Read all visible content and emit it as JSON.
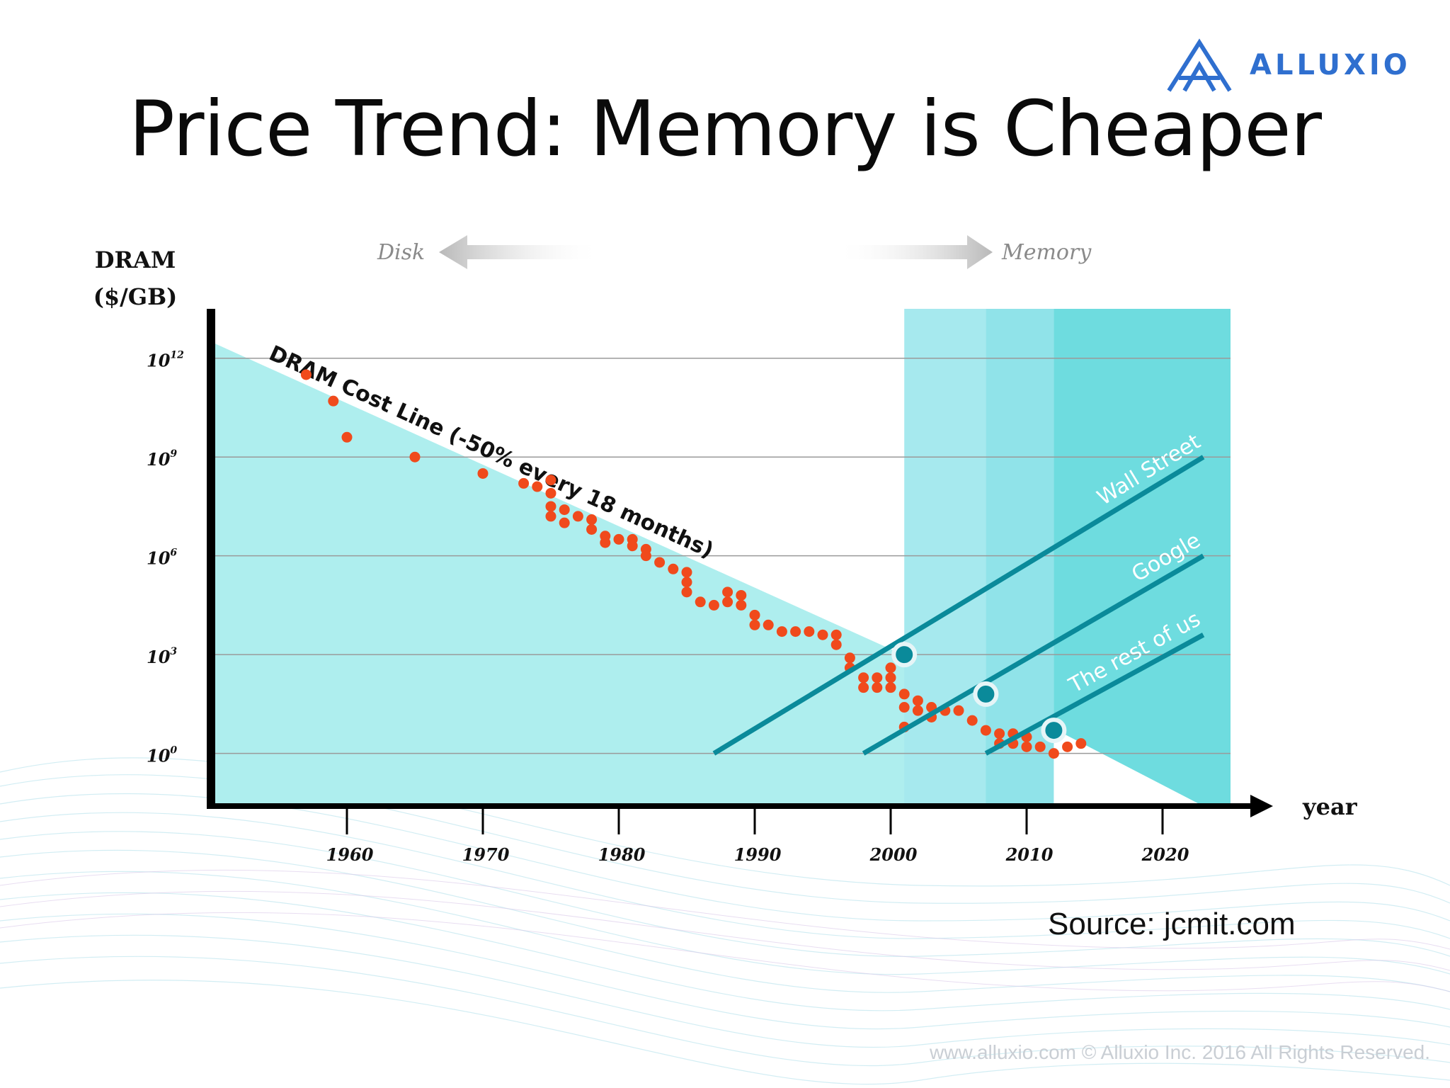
{
  "logo": {
    "text": "ALLUXIO",
    "icon": "alluxio-logo-icon",
    "color": "#2f6fcf"
  },
  "slide": {
    "title": "Price Trend: Memory is Cheaper",
    "source": "Source: jcmit.com",
    "footer": "www.alluxio.com © Alluxio Inc. 2016 All Rights Reserved."
  },
  "chart_data": {
    "type": "scatter",
    "ylabel": [
      "DRAM",
      "($/GB)"
    ],
    "xlabel": "year",
    "xlim": [
      1950,
      2025
    ],
    "y_log_scale": true,
    "ylim_exponent": [
      -1.6,
      13.5
    ],
    "x_ticks": [
      1960,
      1970,
      1980,
      1990,
      2000,
      2010,
      2020
    ],
    "y_ticks": [
      {
        "exp": 12,
        "label": "12"
      },
      {
        "exp": 9,
        "label": "9"
      },
      {
        "exp": 6,
        "label": "6"
      },
      {
        "exp": 3,
        "label": "3"
      },
      {
        "exp": 0,
        "label": "0"
      }
    ],
    "grid": "horizontal",
    "arrows": {
      "left": "Disk",
      "right": "Memory"
    },
    "cost_line": {
      "label": "DRAM Cost Line (-50% every 18 months)",
      "points": [
        {
          "year": 1950,
          "exp": 12.5
        },
        {
          "year": 2025,
          "exp": -1.5
        }
      ]
    },
    "shaded_regions": [
      {
        "from": 2001,
        "to": 2007,
        "color": "#a6e9ee"
      },
      {
        "from": 2007,
        "to": 2012,
        "color": "#90e3e9"
      },
      {
        "from": 2012,
        "to": 2025,
        "color": "#6edcdf"
      }
    ],
    "adoption_lines": [
      {
        "label": "Wall Street",
        "from": {
          "year": 1987,
          "exp": 0
        },
        "to": {
          "year": 2023,
          "exp": 9
        },
        "cross": {
          "year": 2001,
          "exp": 3
        }
      },
      {
        "label": "Google",
        "from": {
          "year": 1998,
          "exp": 0
        },
        "to": {
          "year": 2023,
          "exp": 6
        },
        "cross": {
          "year": 2007,
          "exp": 1.8
        }
      },
      {
        "label": "The rest of us",
        "from": {
          "year": 2007,
          "exp": 0
        },
        "to": {
          "year": 2023,
          "exp": 3.6
        },
        "cross": {
          "year": 2012,
          "exp": 0.7
        }
      }
    ],
    "dot_color": "#f04a1c",
    "line_color": "#0a8a9a",
    "series": [
      {
        "points": [
          {
            "year": 1957,
            "exp": 11.5
          },
          {
            "year": 1959,
            "exp": 10.7
          },
          {
            "year": 1960,
            "exp": 9.6
          },
          {
            "year": 1965,
            "exp": 9.0
          },
          {
            "year": 1970,
            "exp": 8.5
          },
          {
            "year": 1973,
            "exp": 8.2
          },
          {
            "year": 1974,
            "exp": 8.1
          },
          {
            "year": 1975,
            "exp": 8.3
          },
          {
            "year": 1975,
            "exp": 7.9
          },
          {
            "year": 1975,
            "exp": 7.5
          },
          {
            "year": 1975,
            "exp": 7.2
          },
          {
            "year": 1976,
            "exp": 7.4
          },
          {
            "year": 1976,
            "exp": 7.0
          },
          {
            "year": 1977,
            "exp": 7.2
          },
          {
            "year": 1978,
            "exp": 7.1
          },
          {
            "year": 1978,
            "exp": 6.8
          },
          {
            "year": 1979,
            "exp": 6.6
          },
          {
            "year": 1979,
            "exp": 6.4
          },
          {
            "year": 1980,
            "exp": 6.5
          },
          {
            "year": 1981,
            "exp": 6.5
          },
          {
            "year": 1981,
            "exp": 6.3
          },
          {
            "year": 1982,
            "exp": 6.2
          },
          {
            "year": 1982,
            "exp": 6.0
          },
          {
            "year": 1983,
            "exp": 5.8
          },
          {
            "year": 1984,
            "exp": 5.6
          },
          {
            "year": 1985,
            "exp": 5.5
          },
          {
            "year": 1985,
            "exp": 5.2
          },
          {
            "year": 1985,
            "exp": 4.9
          },
          {
            "year": 1986,
            "exp": 4.6
          },
          {
            "year": 1987,
            "exp": 4.5
          },
          {
            "year": 1988,
            "exp": 4.9
          },
          {
            "year": 1988,
            "exp": 4.6
          },
          {
            "year": 1989,
            "exp": 4.8
          },
          {
            "year": 1989,
            "exp": 4.5
          },
          {
            "year": 1990,
            "exp": 4.2
          },
          {
            "year": 1990,
            "exp": 3.9
          },
          {
            "year": 1991,
            "exp": 3.9
          },
          {
            "year": 1992,
            "exp": 3.7
          },
          {
            "year": 1993,
            "exp": 3.7
          },
          {
            "year": 1994,
            "exp": 3.7
          },
          {
            "year": 1995,
            "exp": 3.6
          },
          {
            "year": 1996,
            "exp": 3.6
          },
          {
            "year": 1996,
            "exp": 3.3
          },
          {
            "year": 1997,
            "exp": 2.9
          },
          {
            "year": 1997,
            "exp": 2.6
          },
          {
            "year": 1998,
            "exp": 2.3
          },
          {
            "year": 1998,
            "exp": 2.0
          },
          {
            "year": 1999,
            "exp": 2.3
          },
          {
            "year": 1999,
            "exp": 2.0
          },
          {
            "year": 2000,
            "exp": 2.6
          },
          {
            "year": 2000,
            "exp": 2.3
          },
          {
            "year": 2000,
            "exp": 2.0
          },
          {
            "year": 2001,
            "exp": 1.4
          },
          {
            "year": 2001,
            "exp": 0.8
          },
          {
            "year": 2001,
            "exp": 1.8
          },
          {
            "year": 2002,
            "exp": 1.6
          },
          {
            "year": 2002,
            "exp": 1.3
          },
          {
            "year": 2003,
            "exp": 1.1
          },
          {
            "year": 2003,
            "exp": 1.4
          },
          {
            "year": 2004,
            "exp": 1.3
          },
          {
            "year": 2005,
            "exp": 1.3
          },
          {
            "year": 2006,
            "exp": 1.0
          },
          {
            "year": 2007,
            "exp": 0.7
          },
          {
            "year": 2008,
            "exp": 0.6
          },
          {
            "year": 2008,
            "exp": 0.3
          },
          {
            "year": 2009,
            "exp": 0.6
          },
          {
            "year": 2009,
            "exp": 0.3
          },
          {
            "year": 2010,
            "exp": 0.5
          },
          {
            "year": 2010,
            "exp": 0.2
          },
          {
            "year": 2011,
            "exp": 0.2
          },
          {
            "year": 2012,
            "exp": 0.0
          },
          {
            "year": 2013,
            "exp": 0.2
          },
          {
            "year": 2014,
            "exp": 0.3
          }
        ]
      }
    ]
  }
}
